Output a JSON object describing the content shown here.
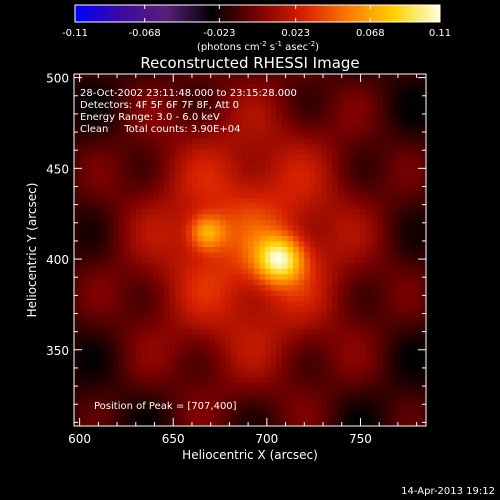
{
  "chart_data": {
    "type": "heatmap",
    "title": "Reconstructed RHESSI Image",
    "xlabel": "Heliocentric X (arcsec)",
    "ylabel": "Heliocentric Y (arcsec)",
    "xlim": [
      597,
      785
    ],
    "ylim": [
      308,
      502
    ],
    "x_ticks": [
      600,
      650,
      700,
      750
    ],
    "y_ticks": [
      350,
      400,
      450,
      500
    ],
    "colorbar": {
      "ticks": [
        -0.11,
        -0.068,
        -0.023,
        0.023,
        0.068,
        0.11
      ],
      "tick_labels": [
        "-0.11",
        "-0.068",
        "-0.023",
        "0.023",
        "0.068",
        "0.11"
      ],
      "unit_prefix": "(photons cm",
      "unit_exp1": "-2",
      "unit_mid": " s",
      "unit_exp2": "-1",
      "unit_mid2": " asec",
      "unit_exp3": "-2",
      "unit_suffix": ")",
      "range": [
        -0.11,
        0.11
      ],
      "colors": [
        "#0000ff",
        "#3a0aa0",
        "#5a1e7a",
        "#000000",
        "#7a0000",
        "#d62000",
        "#ff7a00",
        "#ffd200",
        "#ffffe0"
      ]
    },
    "annotations": [
      "28-Oct-2002 23:11:48.000 to 23:15:28.000",
      "Detectors: 4F 5F 6F 7F 8F, Att 0",
      "Energy Range: 3.0 - 6.0 keV",
      "Clean     Total counts: 3.90E+04"
    ],
    "peak_label": "Position of Peak = [707,400]",
    "sources": [
      {
        "x": 707,
        "y": 400,
        "peak": 0.11
      },
      {
        "x": 668,
        "y": 415,
        "peak": 0.085
      }
    ],
    "background_level": -0.02,
    "grid": false
  },
  "footer": {
    "timestamp": "14-Apr-2013 19:12"
  }
}
